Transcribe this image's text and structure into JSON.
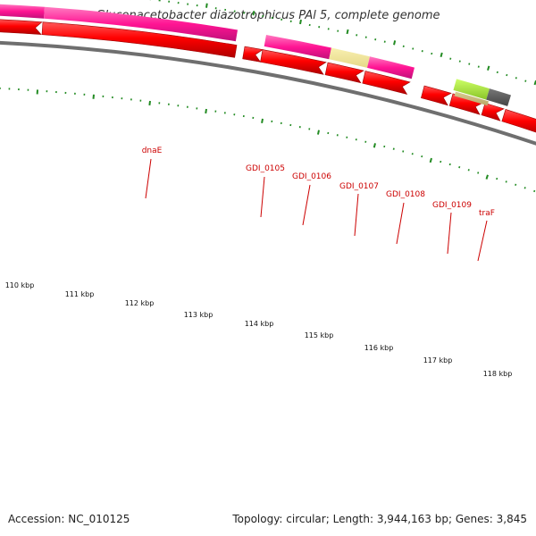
{
  "title": "Gluconacetobacter diazotrophicus PAl 5, complete genome",
  "accession": {
    "label": "Accession:",
    "value": "NC_010125"
  },
  "footer": {
    "topology_label": "Topology:",
    "topology": "circular",
    "length_label": "Length:",
    "length": "3,944,163 bp",
    "genes_label": "Genes:",
    "genes": "3,845"
  },
  "colors": {
    "cds": "#ff0000",
    "cds_edge": "#b00000",
    "named_gene": "#ff1493",
    "named_gene_light": "#ff69b4",
    "pale_gene": "#f0e68c",
    "lime_gene": "#9acd32",
    "grey_gene": "#555555",
    "label": "#cc0000",
    "tick": "#228b22",
    "backbone": "#888888"
  },
  "gene_labels": [
    {
      "id": "dnaE",
      "text": "dnaE"
    },
    {
      "id": "gdi0105",
      "text": "GDI_0105"
    },
    {
      "id": "gdi0106",
      "text": "GDI_0106"
    },
    {
      "id": "gdi0107",
      "text": "GDI_0107"
    },
    {
      "id": "gdi0108",
      "text": "GDI_0108"
    },
    {
      "id": "gdi0109",
      "text": "GDI_0109"
    },
    {
      "id": "traF",
      "text": "traF"
    }
  ],
  "scale_labels": [
    {
      "id": "k110",
      "text": "110 kbp"
    },
    {
      "id": "k111",
      "text": "111 kbp"
    },
    {
      "id": "k112",
      "text": "112 kbp"
    },
    {
      "id": "k113",
      "text": "113 kbp"
    },
    {
      "id": "k114",
      "text": "114 kbp"
    },
    {
      "id": "k115",
      "text": "115 kbp"
    },
    {
      "id": "k116",
      "text": "116 kbp"
    },
    {
      "id": "k117",
      "text": "117 kbp"
    },
    {
      "id": "k118",
      "text": "118 kbp"
    }
  ]
}
